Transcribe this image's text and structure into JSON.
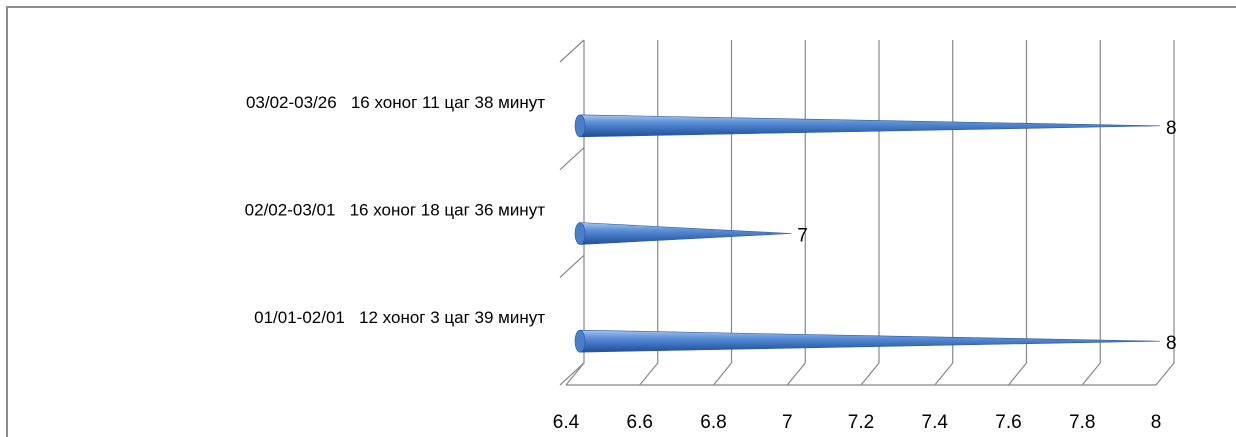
{
  "chart_data": {
    "type": "bar",
    "orientation": "horizontal",
    "style": "3d-cone",
    "categories": [
      "01/01-02/01   12 хоног 3 цаг 39 минут",
      "02/02-03/01   16 хоног 18 цаг 36 минут",
      "03/02-03/26   16 хоног 11 цаг 38 минут"
    ],
    "values": [
      8,
      7,
      8
    ],
    "data_labels": [
      "8",
      "7",
      "8"
    ],
    "xlim": [
      6.4,
      8
    ],
    "x_ticks": [
      "6.4",
      "6.6",
      "6.8",
      "7",
      "7.2",
      "7.4",
      "7.6",
      "7.8",
      "8"
    ],
    "grid": true,
    "legend": "none",
    "colors": {
      "bar": "#4a7ec8",
      "bar_light": "#9dbde8",
      "bar_dark": "#2a5aa0",
      "grid": "#888888",
      "frame": "#8c8c8c"
    }
  }
}
